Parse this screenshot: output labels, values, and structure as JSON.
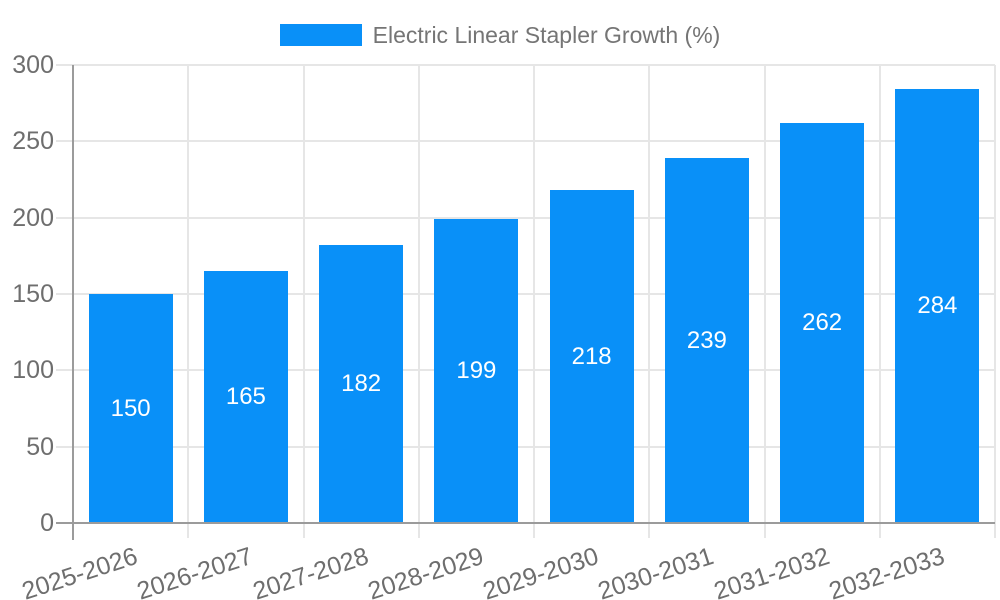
{
  "legend": {
    "label": "Electric Linear Stapler Growth (%)"
  },
  "chart_data": {
    "type": "bar",
    "title": "",
    "series_name": "Electric Linear Stapler Growth (%)",
    "categories": [
      "2025-2026",
      "2026-2027",
      "2027-2028",
      "2028-2029",
      "2029-2030",
      "2030-2031",
      "2031-2032",
      "2032-2033"
    ],
    "values": [
      150,
      165,
      182,
      199,
      218,
      239,
      262,
      284
    ],
    "xlabel": "",
    "ylabel": "",
    "ylim": [
      0,
      300
    ],
    "yticks": [
      0,
      50,
      100,
      150,
      200,
      250,
      300
    ],
    "grid": true,
    "legend_position": "top",
    "bar_value_labels": "inside-center"
  },
  "colors": {
    "bar": "#0990F8",
    "grid": "#E6E6E6",
    "axis": "#9B9B9B",
    "tick_text": "#6E6E6E",
    "legend_text": "#757575",
    "bar_label_text": "#FFFFFF",
    "background": "#FFFFFF"
  }
}
